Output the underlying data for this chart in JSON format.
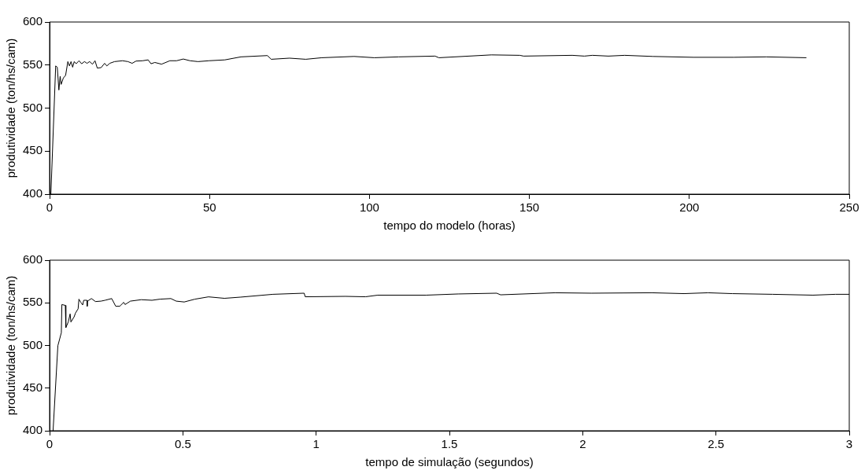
{
  "chart_data": [
    {
      "type": "line",
      "xlabel": "tempo do modelo (horas)",
      "ylabel": "produtividade (ton/hs/cam)",
      "xlim": [
        0,
        250
      ],
      "xticks": [
        0,
        50,
        100,
        150,
        200,
        250
      ],
      "ylim": [
        400,
        600
      ],
      "yticks": [
        400,
        450,
        500,
        550,
        600
      ],
      "grid": false,
      "legend": false,
      "marker": "none",
      "line_style": "solid",
      "series": [
        {
          "color": "#000000",
          "x": [
            0.4,
            1.9,
            2.4,
            2.9,
            3.3,
            3.6,
            4.3,
            5.0,
            5.7,
            6.2,
            6.7,
            7.2,
            7.7,
            8.3,
            9.2,
            10.0,
            10.9,
            11.7,
            12.5,
            13.4,
            14.2,
            14.9,
            16.1,
            17.2,
            17.9,
            18.8,
            20.3,
            22.8,
            24.5,
            25.8,
            27.0,
            29.1,
            30.8,
            31.7,
            32.9,
            35.0,
            37.6,
            39.7,
            41.8,
            43.9,
            46.4,
            49.8,
            54.8,
            59.8,
            68.1,
            69.3,
            75.0,
            80.1,
            85.1,
            95.2,
            101.5,
            109.1,
            120.5,
            121.7,
            138.1,
            147.0,
            148.2,
            163.4,
            167.2,
            169.7,
            174.7,
            179.8,
            188.6,
            201.3,
            213.9,
            224.0,
            236.6
          ],
          "values": [
            400,
            549,
            547.5,
            521,
            537,
            527.5,
            535,
            538,
            554,
            549,
            554,
            547.5,
            554,
            551.5,
            555,
            551.5,
            554,
            552,
            554,
            551,
            555,
            546.5,
            547,
            552,
            549,
            552,
            554,
            555,
            554,
            552,
            554.6,
            555,
            556,
            551.5,
            553,
            551,
            555,
            555,
            557,
            555,
            554,
            555,
            556,
            559.5,
            561,
            556.7,
            558,
            556.7,
            558.5,
            560,
            558.5,
            559.5,
            560.4,
            558.5,
            561.8,
            561.3,
            560.4,
            561.3,
            560.4,
            561.3,
            560.4,
            561.3,
            560,
            559,
            559,
            559.5,
            558.5
          ]
        }
      ]
    },
    {
      "type": "line",
      "xlabel": "tempo de simulação (segundos)",
      "ylabel": "produtividade (ton/hs/cam)",
      "xlim": [
        0,
        3
      ],
      "xticks": [
        0,
        0.5,
        1,
        1.5,
        2,
        2.5,
        3
      ],
      "ylim": [
        400,
        600
      ],
      "yticks": [
        400,
        450,
        500,
        550,
        600
      ],
      "grid": false,
      "legend": false,
      "marker": "none",
      "line_style": "solid",
      "series": [
        {
          "color": "#000000",
          "x": [
            0.013,
            0.031,
            0.044,
            0.046,
            0.059,
            0.061,
            0.07,
            0.077,
            0.08,
            0.092,
            0.097,
            0.107,
            0.11,
            0.117,
            0.124,
            0.128,
            0.14,
            0.141,
            0.142,
            0.157,
            0.172,
            0.193,
            0.208,
            0.233,
            0.248,
            0.263,
            0.278,
            0.283,
            0.303,
            0.344,
            0.384,
            0.414,
            0.455,
            0.475,
            0.505,
            0.545,
            0.596,
            0.656,
            0.717,
            0.838,
            0.955,
            0.959,
            1.11,
            1.185,
            1.231,
            1.412,
            1.533,
            1.677,
            1.692,
            1.896,
            2.032,
            2.259,
            2.38,
            2.47,
            2.561,
            2.712,
            2.864,
            2.948,
            3.0
          ],
          "values": [
            400,
            499.7,
            515,
            548,
            547,
            521,
            527.5,
            537,
            527.5,
            533.6,
            538,
            543,
            554.3,
            550.6,
            547.5,
            553,
            553,
            546,
            552,
            555,
            551.5,
            552,
            553,
            555,
            546,
            546,
            550.6,
            548,
            552,
            553.7,
            553,
            554.3,
            555,
            552,
            551,
            554.3,
            557,
            555.3,
            556.7,
            560,
            561.3,
            557.1,
            557.6,
            557.1,
            559,
            559,
            560.4,
            561.3,
            559.4,
            561.8,
            561.3,
            561.8,
            560.8,
            561.8,
            560.8,
            560,
            559,
            560,
            560
          ]
        }
      ]
    }
  ]
}
